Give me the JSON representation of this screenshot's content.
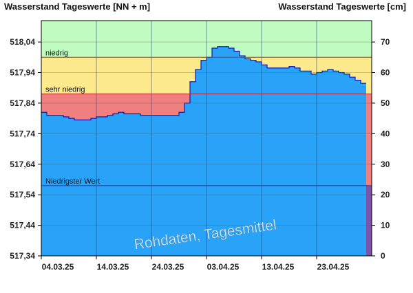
{
  "chart_data": {
    "type": "area",
    "left_axis_title": "Wasserstand Tageswerte [NN + m]",
    "right_axis_title": "Wasserstand Tageswerte [cm]",
    "left_ticks": [
      "517,34",
      "517,44",
      "517,54",
      "517,64",
      "517,74",
      "517,84",
      "517,94",
      "518,04"
    ],
    "left_tick_values": [
      517.34,
      517.44,
      517.54,
      517.64,
      517.74,
      517.84,
      517.94,
      518.04
    ],
    "right_ticks": [
      "0",
      "10",
      "20",
      "30",
      "40",
      "50",
      "60",
      "70"
    ],
    "right_tick_values": [
      0,
      10,
      20,
      30,
      40,
      50,
      60,
      70
    ],
    "ylim_cm": [
      0,
      77
    ],
    "x_ticks": [
      "04.03.25",
      "14.03.25",
      "24.03.25",
      "03.04.25",
      "13.04.25",
      "23.04.25"
    ],
    "x_tick_days": [
      0,
      10,
      20,
      30,
      40,
      50
    ],
    "xlim_days": [
      0,
      60
    ],
    "thresholds": [
      {
        "label": "niedrig",
        "value_cm": 65
      },
      {
        "label": "sehr niedrig",
        "value_cm": 53
      },
      {
        "label": "Niedrigster Wert",
        "value_cm": 23
      }
    ],
    "series": [
      {
        "values_cm": [
          47,
          46,
          46,
          46,
          45.5,
          45,
          44.5,
          44.5,
          44.5,
          45,
          45.5,
          45.5,
          46,
          46.5,
          47,
          46.5,
          46.5,
          46.5,
          46,
          46,
          46,
          46,
          46,
          46,
          46,
          47,
          50,
          57,
          61,
          64,
          65,
          68,
          68.5,
          68.5,
          68,
          67,
          65.5,
          64.5,
          64,
          63.5,
          62.5,
          61.5,
          61.5,
          61.5,
          61.5,
          62,
          61.5,
          60.5,
          60.5,
          59.5,
          60,
          60.5,
          61,
          60.5,
          60,
          59.5,
          58.5,
          57.5,
          56.5
        ]
      }
    ],
    "colors": {
      "band_normal": "#c0fcc0",
      "band_niedrig": "#fdea8c",
      "band_sehr_niedrig": "#f08080",
      "water_fill": "#29a3f7",
      "water_line": "#1515b8",
      "lowest_strip": "#7d54a8"
    },
    "watermark": "Rohdaten, Tagesmittel"
  }
}
